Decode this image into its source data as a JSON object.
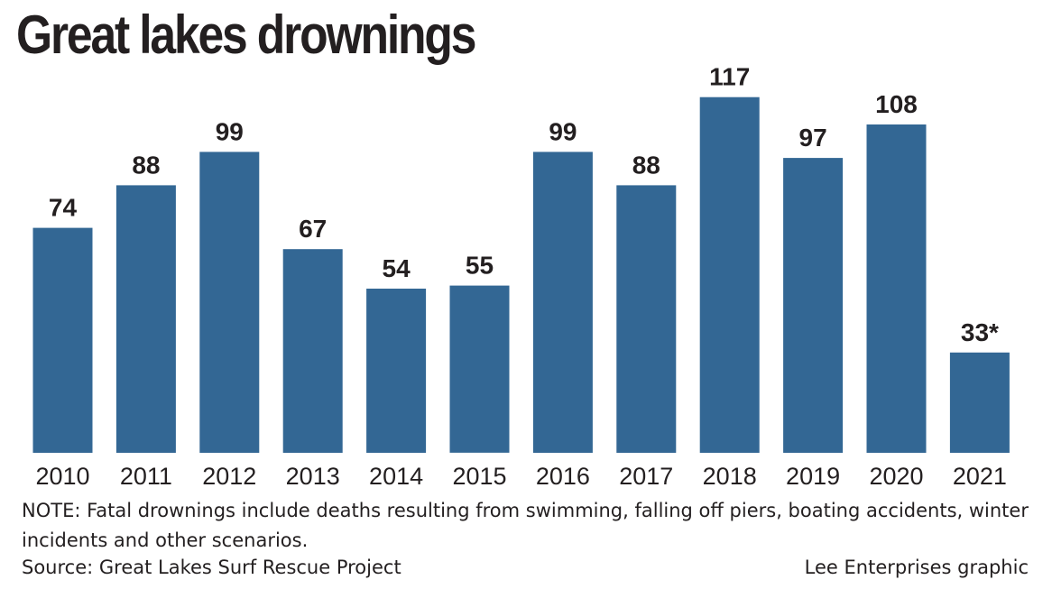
{
  "chart_data": {
    "type": "bar",
    "title": "Great lakes drownings",
    "categories": [
      "2010",
      "2011",
      "2012",
      "2013",
      "2014",
      "2015",
      "2016",
      "2017",
      "2018",
      "2019",
      "2020",
      "2021"
    ],
    "values": [
      74,
      88,
      99,
      67,
      54,
      55,
      99,
      88,
      117,
      97,
      108,
      33
    ],
    "value_labels": [
      "74",
      "88",
      "99",
      "67",
      "54",
      "55",
      "99",
      "88",
      "117",
      "97",
      "108",
      "33*"
    ],
    "xlabel": "",
    "ylabel": "",
    "ylim": [
      0,
      125
    ],
    "grid": false,
    "colors": {
      "bar": "#336794",
      "text": "#231f20"
    }
  },
  "note": "NOTE: Fatal drownings include deaths resulting from swimming, falling off piers, boating accidents, winter incidents and other scenarios.",
  "source": "Source: Great Lakes Surf Rescue Project",
  "credit": "Lee Enterprises graphic"
}
